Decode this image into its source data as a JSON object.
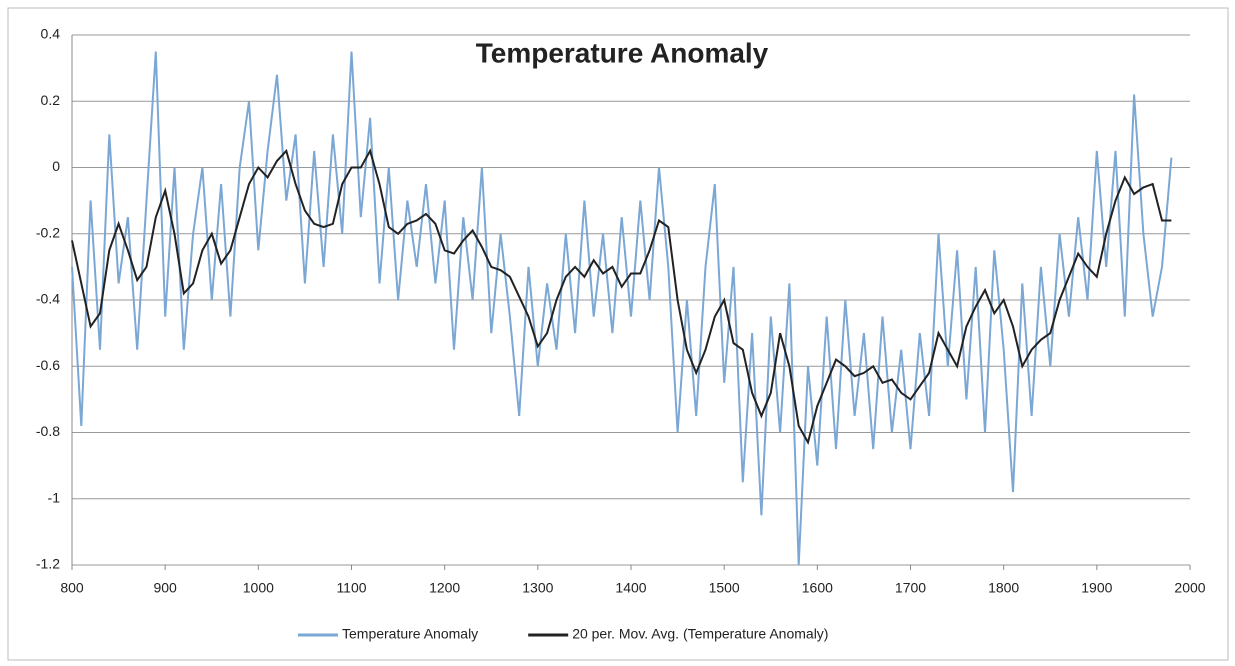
{
  "chart_data": {
    "type": "line",
    "title": "Temperature Anomaly",
    "x": [
      800,
      810,
      820,
      830,
      840,
      850,
      860,
      870,
      880,
      890,
      900,
      910,
      920,
      930,
      940,
      950,
      960,
      970,
      980,
      990,
      1000,
      1010,
      1020,
      1030,
      1040,
      1050,
      1060,
      1070,
      1080,
      1090,
      1100,
      1110,
      1120,
      1130,
      1140,
      1150,
      1160,
      1170,
      1180,
      1190,
      1200,
      1210,
      1220,
      1230,
      1240,
      1250,
      1260,
      1270,
      1280,
      1290,
      1300,
      1310,
      1320,
      1330,
      1340,
      1350,
      1360,
      1370,
      1380,
      1390,
      1400,
      1410,
      1420,
      1430,
      1440,
      1450,
      1460,
      1470,
      1480,
      1490,
      1500,
      1510,
      1520,
      1530,
      1540,
      1550,
      1560,
      1570,
      1580,
      1590,
      1600,
      1610,
      1620,
      1630,
      1640,
      1650,
      1660,
      1670,
      1680,
      1690,
      1700,
      1710,
      1720,
      1730,
      1740,
      1750,
      1760,
      1770,
      1780,
      1790,
      1800,
      1810,
      1820,
      1830,
      1840,
      1850,
      1860,
      1870,
      1880,
      1890,
      1900,
      1910,
      1920,
      1930,
      1940,
      1950,
      1960,
      1970,
      1980
    ],
    "series": [
      {
        "name": "Temperature Anomaly",
        "color": "#7ba7d4",
        "values": [
          -0.3,
          -0.78,
          -0.1,
          -0.55,
          0.1,
          -0.35,
          -0.15,
          -0.55,
          -0.1,
          0.35,
          -0.45,
          0.0,
          -0.55,
          -0.2,
          0.0,
          -0.4,
          -0.05,
          -0.45,
          0.0,
          0.2,
          -0.25,
          0.05,
          0.28,
          -0.1,
          0.1,
          -0.35,
          0.05,
          -0.3,
          0.1,
          -0.2,
          0.35,
          -0.15,
          0.15,
          -0.35,
          0.0,
          -0.4,
          -0.1,
          -0.3,
          -0.05,
          -0.35,
          -0.1,
          -0.55,
          -0.15,
          -0.4,
          0.0,
          -0.5,
          -0.2,
          -0.45,
          -0.75,
          -0.3,
          -0.6,
          -0.35,
          -0.55,
          -0.2,
          -0.5,
          -0.1,
          -0.45,
          -0.2,
          -0.5,
          -0.15,
          -0.45,
          -0.1,
          -0.4,
          0.0,
          -0.3,
          -0.8,
          -0.4,
          -0.75,
          -0.3,
          -0.05,
          -0.65,
          -0.3,
          -0.95,
          -0.5,
          -1.05,
          -0.45,
          -0.8,
          -0.35,
          -1.2,
          -0.6,
          -0.9,
          -0.45,
          -0.85,
          -0.4,
          -0.75,
          -0.5,
          -0.85,
          -0.45,
          -0.8,
          -0.55,
          -0.85,
          -0.5,
          -0.75,
          -0.2,
          -0.6,
          -0.25,
          -0.7,
          -0.3,
          -0.8,
          -0.25,
          -0.55,
          -0.98,
          -0.35,
          -0.75,
          -0.3,
          -0.6,
          -0.2,
          -0.45,
          -0.15,
          -0.4,
          0.05,
          -0.3,
          0.05,
          -0.45,
          0.22,
          -0.2,
          -0.45,
          -0.3,
          0.03
        ]
      },
      {
        "name": "20 per. Mov. Avg. (Temperature Anomaly)",
        "color": "#222222",
        "values": [
          -0.22,
          -0.35,
          -0.48,
          -0.44,
          -0.25,
          -0.17,
          -0.25,
          -0.34,
          -0.3,
          -0.15,
          -0.07,
          -0.2,
          -0.38,
          -0.35,
          -0.25,
          -0.2,
          -0.29,
          -0.25,
          -0.15,
          -0.05,
          0.0,
          -0.03,
          0.02,
          0.05,
          -0.05,
          -0.13,
          -0.17,
          -0.18,
          -0.17,
          -0.05,
          0.0,
          0.0,
          0.05,
          -0.05,
          -0.18,
          -0.2,
          -0.17,
          -0.16,
          -0.14,
          -0.17,
          -0.25,
          -0.26,
          -0.22,
          -0.19,
          -0.24,
          -0.3,
          -0.31,
          -0.33,
          -0.39,
          -0.45,
          -0.54,
          -0.5,
          -0.4,
          -0.33,
          -0.3,
          -0.33,
          -0.28,
          -0.32,
          -0.3,
          -0.36,
          -0.32,
          -0.32,
          -0.25,
          -0.16,
          -0.18,
          -0.4,
          -0.55,
          -0.62,
          -0.55,
          -0.45,
          -0.4,
          -0.53,
          -0.55,
          -0.68,
          -0.75,
          -0.68,
          -0.5,
          -0.6,
          -0.78,
          -0.83,
          -0.72,
          -0.65,
          -0.58,
          -0.6,
          -0.63,
          -0.62,
          -0.6,
          -0.65,
          -0.64,
          -0.68,
          -0.7,
          -0.66,
          -0.62,
          -0.5,
          -0.55,
          -0.6,
          -0.48,
          -0.42,
          -0.37,
          -0.44,
          -0.4,
          -0.48,
          -0.6,
          -0.55,
          -0.52,
          -0.5,
          -0.4,
          -0.33,
          -0.26,
          -0.3,
          -0.33,
          -0.2,
          -0.1,
          -0.03,
          -0.08,
          -0.06,
          -0.05,
          -0.16,
          -0.16
        ]
      }
    ],
    "xlim": [
      800,
      2000
    ],
    "xticks": [
      800,
      900,
      1000,
      1100,
      1200,
      1300,
      1400,
      1500,
      1600,
      1700,
      1800,
      1900,
      2000
    ],
    "ylim": [
      -1.2,
      0.4
    ],
    "yticks": [
      0.4,
      0.2,
      0,
      -0.2,
      -0.4,
      -0.6,
      -0.8,
      -1,
      -1.2
    ],
    "grid": true,
    "legend": "bottom"
  }
}
